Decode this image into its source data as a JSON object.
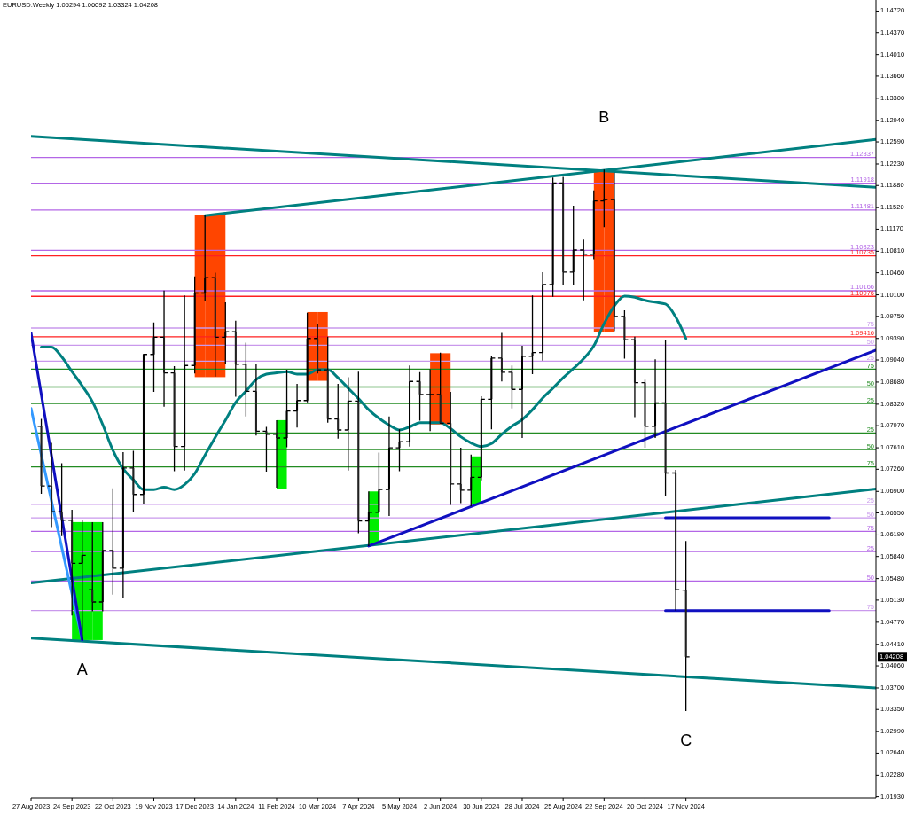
{
  "chart_data": {
    "type": "candlestick",
    "title": "EURUSD.Weekly 1.05294 1.06092 1.03324 1.04208",
    "x": [
      "2023-09-03",
      "2023-09-10",
      "2023-09-17",
      "2023-09-24",
      "2023-10-01",
      "2023-10-08",
      "2023-10-15",
      "2023-10-22",
      "2023-10-29",
      "2023-11-05",
      "2023-11-12",
      "2023-11-19",
      "2023-11-26",
      "2023-12-03",
      "2023-12-10",
      "2023-12-17",
      "2023-12-24",
      "2023-12-31",
      "2024-01-07",
      "2024-01-14",
      "2024-01-21",
      "2024-01-28",
      "2024-02-04",
      "2024-02-11",
      "2024-02-18",
      "2024-02-25",
      "2024-03-03",
      "2024-03-10",
      "2024-03-17",
      "2024-03-24",
      "2024-03-31",
      "2024-04-07",
      "2024-04-14",
      "2024-04-21",
      "2024-04-28",
      "2024-05-05",
      "2024-05-12",
      "2024-05-19",
      "2024-05-26",
      "2024-06-02",
      "2024-06-09",
      "2024-06-16",
      "2024-06-23",
      "2024-06-30",
      "2024-07-07",
      "2024-07-14",
      "2024-07-21",
      "2024-07-28",
      "2024-08-04",
      "2024-08-11",
      "2024-08-18",
      "2024-08-25",
      "2024-09-01",
      "2024-09-08",
      "2024-09-15",
      "2024-09-22",
      "2024-09-29",
      "2024-10-06",
      "2024-10-13",
      "2024-10-20",
      "2024-10-27",
      "2024-11-03",
      "2024-11-10",
      "2024-11-17"
    ],
    "ohlc": [
      [
        1.0796,
        1.0808,
        1.0686,
        1.0699
      ],
      [
        1.0699,
        1.0769,
        1.0632,
        1.0657
      ],
      [
        1.0657,
        1.0736,
        1.0617,
        1.0643
      ],
      [
        1.0643,
        1.066,
        1.0488,
        1.0573
      ],
      [
        1.0573,
        1.0643,
        1.0448,
        1.0586
      ],
      [
        1.053,
        1.064,
        1.0495,
        1.051
      ],
      [
        1.051,
        1.064,
        1.0495,
        1.0594
      ],
      [
        1.0594,
        1.0695,
        1.0522,
        1.0565
      ],
      [
        1.0565,
        1.0754,
        1.0516,
        1.0728
      ],
      [
        1.0728,
        1.0756,
        1.0657,
        1.0685
      ],
      [
        1.0685,
        1.0914,
        1.0669,
        1.0913
      ],
      [
        1.0913,
        1.0965,
        1.0852,
        1.0941
      ],
      [
        1.0941,
        1.1017,
        1.0828,
        1.0883
      ],
      [
        1.0883,
        1.0894,
        1.0723,
        1.0763
      ],
      [
        1.0763,
        1.1009,
        1.0724,
        1.0895
      ],
      [
        1.0895,
        1.104,
        1.0882,
        1.1013
      ],
      [
        1.1013,
        1.114,
        1.1,
        1.1038
      ],
      [
        1.1038,
        1.1046,
        1.0877,
        1.0941
      ],
      [
        1.0941,
        1.0998,
        1.0898,
        1.095
      ],
      [
        1.095,
        1.0968,
        1.0844,
        1.0897
      ],
      [
        1.0897,
        1.0932,
        1.0812,
        1.0853
      ],
      [
        1.0853,
        1.0898,
        1.0781,
        1.0788
      ],
      [
        1.0788,
        1.0795,
        1.0722,
        1.0783
      ],
      [
        1.0783,
        1.0806,
        1.0696,
        1.0777
      ],
      [
        1.0777,
        1.0888,
        1.0762,
        1.0821
      ],
      [
        1.0821,
        1.0865,
        1.0794,
        1.0838
      ],
      [
        1.0838,
        1.0981,
        1.0835,
        1.0939
      ],
      [
        1.0939,
        1.0962,
        1.0882,
        1.0888
      ],
      [
        1.0888,
        1.0942,
        1.0802,
        1.0808
      ],
      [
        1.0808,
        1.0865,
        1.0776,
        1.079
      ],
      [
        1.079,
        1.0876,
        1.0724,
        1.0837
      ],
      [
        1.0837,
        1.0885,
        1.0622,
        1.0642
      ],
      [
        1.0642,
        1.069,
        1.0601,
        1.0656
      ],
      [
        1.0656,
        1.0753,
        1.0656,
        1.0693
      ],
      [
        1.0693,
        1.0812,
        1.065,
        1.0761
      ],
      [
        1.0761,
        1.0791,
        1.0723,
        1.0771
      ],
      [
        1.0771,
        1.0895,
        1.0763,
        1.0869
      ],
      [
        1.0869,
        1.0884,
        1.0805,
        1.0848
      ],
      [
        1.0848,
        1.0889,
        1.0788,
        1.0848
      ],
      [
        1.0848,
        1.0916,
        1.08,
        1.0801
      ],
      [
        1.0801,
        1.0852,
        1.0668,
        1.0702
      ],
      [
        1.0702,
        1.0761,
        1.0671,
        1.0692
      ],
      [
        1.0692,
        1.075,
        1.0666,
        1.0713
      ],
      [
        1.0713,
        1.0845,
        1.0708,
        1.084
      ],
      [
        1.084,
        1.091,
        1.0791,
        1.0907
      ],
      [
        1.0907,
        1.0948,
        1.0869,
        1.0884
      ],
      [
        1.0884,
        1.0895,
        1.0825,
        1.0856
      ],
      [
        1.0856,
        1.0927,
        1.0777,
        1.091
      ],
      [
        1.091,
        1.1009,
        1.0881,
        1.0916
      ],
      [
        1.0916,
        1.1047,
        1.0903,
        1.1027
      ],
      [
        1.1027,
        1.1201,
        1.1007,
        1.1192
      ],
      [
        1.1192,
        1.1202,
        1.1026,
        1.1047
      ],
      [
        1.1047,
        1.1155,
        1.1026,
        1.1083
      ],
      [
        1.1083,
        1.11,
        1.1001,
        1.1076
      ],
      [
        1.1076,
        1.118,
        1.1068,
        1.1163
      ],
      [
        1.1163,
        1.1214,
        1.112,
        1.1165
      ],
      [
        1.1165,
        1.1209,
        1.0951,
        1.0975
      ],
      [
        1.0975,
        1.0985,
        1.0906,
        1.0937
      ],
      [
        1.0937,
        1.0942,
        1.0811,
        1.0867
      ],
      [
        1.0867,
        1.0872,
        1.0761,
        1.0796
      ],
      [
        1.0796,
        1.0905,
        1.0777,
        1.0834
      ],
      [
        1.0834,
        1.0937,
        1.0682,
        1.072
      ],
      [
        1.072,
        1.0725,
        1.0496,
        1.053
      ],
      [
        1.05294,
        1.06092,
        1.03324,
        1.04208
      ]
    ],
    "series": [
      {
        "type": "bar",
        "color": "#ff4500",
        "x": [
          "2023-12-17",
          "2023-12-24",
          "2023-12-31"
        ],
        "base": [
          1.0876,
          1.0876,
          1.0876
        ],
        "values": [
          0.0264,
          0.0264,
          0.0264
        ]
      },
      {
        "type": "bar",
        "color": "#ff4500",
        "x": [
          "2024-03-03",
          "2024-03-10"
        ],
        "base": [
          1.087,
          1.087
        ],
        "values": [
          0.0112,
          0.0112
        ]
      },
      {
        "type": "bar",
        "color": "#ff4500",
        "x": [
          "2024-05-26",
          "2024-06-02"
        ],
        "base": [
          1.0799,
          1.0799
        ],
        "values": [
          0.0116,
          0.0116
        ]
      },
      {
        "type": "bar",
        "color": "#ff4500",
        "x": [
          "2024-09-15",
          "2024-09-22"
        ],
        "base": [
          1.095,
          1.095
        ],
        "values": [
          0.0263,
          0.0263
        ]
      },
      {
        "type": "bar",
        "color": "#00ee00",
        "x": [
          "2023-09-24",
          "2023-10-01",
          "2023-10-08"
        ],
        "base": [
          1.0448,
          1.0448,
          1.0448
        ],
        "values": [
          0.0192,
          0.0192,
          0.0192
        ]
      },
      {
        "type": "bar",
        "color": "#00ee00",
        "x": [
          "2024-02-11"
        ],
        "base": [
          1.0694
        ],
        "values": [
          0.0112
        ]
      },
      {
        "type": "bar",
        "color": "#00ee00",
        "x": [
          "2024-04-14"
        ],
        "base": [
          1.0604
        ],
        "values": [
          0.0086
        ]
      },
      {
        "type": "bar",
        "color": "#00ee00",
        "x": [
          "2024-06-23"
        ],
        "base": [
          1.0669
        ],
        "values": [
          0.0078
        ]
      },
      {
        "type": "line",
        "color": "#008080",
        "values": [
          1.0925,
          1.0925,
          1.0909,
          1.0885,
          1.0862,
          1.0836,
          1.0799,
          1.0757,
          1.0727,
          1.0709,
          1.0693,
          1.0693,
          1.0697,
          1.0693,
          1.0701,
          1.0719,
          1.0749,
          1.0778,
          1.0806,
          1.0835,
          1.0853,
          1.0872,
          1.0881,
          1.0883,
          1.0885,
          1.0881,
          1.0881,
          1.0888,
          1.0888,
          1.0875,
          1.0858,
          1.0841,
          1.0823,
          1.0809,
          1.0798,
          1.079,
          1.0795,
          1.0802,
          1.0802,
          1.0802,
          1.0792,
          1.0779,
          1.0769,
          1.0763,
          1.0768,
          1.0783,
          1.0796,
          1.0807,
          1.0823,
          1.0842,
          1.0858,
          1.0875,
          1.089,
          1.0906,
          1.0927,
          1.0963,
          1.0992,
          1.1008,
          1.1006,
          1.1001,
          1.0998,
          1.0995,
          1.0974,
          1.0939
        ]
      },
      {
        "type": "line",
        "color": "#008080",
        "x": [
          "2023-08-27",
          "2025-03-27"
        ],
        "values": [
          1.1268,
          1.1185
        ]
      },
      {
        "type": "line",
        "color": "#008080",
        "x": [
          "2023-12-24",
          "2025-03-27"
        ],
        "values": [
          1.1139,
          1.1263
        ]
      },
      {
        "type": "line",
        "color": "#008080",
        "x": [
          "2023-08-27",
          "2025-03-27"
        ],
        "values": [
          1.0541,
          1.0694
        ]
      },
      {
        "type": "line",
        "color": "#008080",
        "x": [
          "2023-08-27",
          "2025-03-27"
        ],
        "values": [
          1.0451,
          1.037
        ]
      },
      {
        "type": "line",
        "color": "#3399ff",
        "x": [
          "2023-08-27",
          "2023-10-01"
        ],
        "values": [
          1.0825,
          1.0448
        ]
      },
      {
        "type": "line",
        "color": "#1010c0",
        "x": [
          "2023-08-27",
          "2023-10-01"
        ],
        "values": [
          1.0948,
          1.0448
        ]
      },
      {
        "type": "line",
        "color": "#1010c0",
        "x": [
          "2024-04-14",
          "2025-03-27"
        ],
        "values": [
          1.0601,
          1.092
        ]
      },
      {
        "type": "line",
        "color": "#1010c0",
        "x": [
          "2024-11-03",
          "2025-02-23"
        ],
        "values": [
          1.0647,
          1.0647
        ]
      },
      {
        "type": "line",
        "color": "#1010c0",
        "x": [
          "2024-11-03",
          "2025-02-23"
        ],
        "values": [
          1.0496,
          1.0496
        ]
      }
    ],
    "ref_lines": [
      {
        "axis": "y",
        "value": 1.12337,
        "label": "1.12337",
        "color": "#b366e6"
      },
      {
        "axis": "y",
        "value": 1.11918,
        "label": "1.11918",
        "color": "#b366e6"
      },
      {
        "axis": "y",
        "value": 1.11481,
        "label": "1.11481",
        "color": "#b366e6"
      },
      {
        "axis": "y",
        "value": 1.10823,
        "label": "1.10823",
        "color": "#b366e6"
      },
      {
        "axis": "y",
        "value": 1.10735,
        "label": "1.10735",
        "color": "#ff2020"
      },
      {
        "axis": "y",
        "value": 1.10166,
        "label": "1.10166",
        "color": "#b366e6"
      },
      {
        "axis": "y",
        "value": 1.10076,
        "label": "1.10076",
        "color": "#ff2020"
      },
      {
        "axis": "y",
        "value": 1.0956,
        "color": "#c999ec"
      },
      {
        "axis": "y",
        "value": 1.09416,
        "label": "1.09416",
        "color": "#ff2020"
      },
      {
        "axis": "y",
        "value": 1.0928,
        "color": "#c999ec"
      },
      {
        "axis": "y",
        "value": 1.0902,
        "color": "#c999ec"
      },
      {
        "axis": "y",
        "value": 1.0889,
        "color": "#228b22"
      },
      {
        "axis": "y",
        "value": 1.086,
        "color": "#228b22"
      },
      {
        "axis": "y",
        "value": 1.0833,
        "color": "#228b22"
      },
      {
        "axis": "y",
        "value": 1.0785,
        "color": "#228b22"
      },
      {
        "axis": "y",
        "value": 1.0758,
        "color": "#228b22"
      },
      {
        "axis": "y",
        "value": 1.073,
        "color": "#228b22"
      },
      {
        "axis": "y",
        "value": 1.0669,
        "color": "#c999ec"
      },
      {
        "axis": "y",
        "value": 1.0647,
        "color": "#c999ec"
      },
      {
        "axis": "y",
        "value": 1.0625,
        "color": "#b366e6"
      },
      {
        "axis": "y",
        "value": 1.0592,
        "color": "#b366e6"
      },
      {
        "axis": "y",
        "value": 1.0544,
        "color": "#b366e6"
      },
      {
        "axis": "y",
        "value": 1.0496,
        "color": "#c999ec"
      }
    ],
    "annotations": [
      {
        "text": "A",
        "x": "2023-10-01",
        "y": 1.0448
      },
      {
        "text": "B",
        "x": "2024-09-22",
        "y": 1.1214
      },
      {
        "text": "C",
        "x": "2024-11-17",
        "y": 1.03324
      },
      {
        "text": "1.04208",
        "y": 1.04208
      },
      {
        "text": "75",
        "y": 1.0956
      },
      {
        "text": "50",
        "y": 1.0928
      },
      {
        "text": "25",
        "y": 1.0902
      },
      {
        "text": "75",
        "y": 1.0889
      },
      {
        "text": "50",
        "y": 1.086
      },
      {
        "text": "25",
        "y": 1.0833
      },
      {
        "text": "25",
        "y": 1.0785
      },
      {
        "text": "50",
        "y": 1.0758
      },
      {
        "text": "75",
        "y": 1.073
      },
      {
        "text": "25",
        "y": 1.0669
      },
      {
        "text": "50",
        "y": 1.0647
      },
      {
        "text": "75",
        "y": 1.0625
      },
      {
        "text": "25",
        "y": 1.0592
      },
      {
        "text": "50",
        "y": 1.0544
      },
      {
        "text": "75",
        "y": 1.0496
      }
    ],
    "xlim": [
      "2023-08-27",
      "2025-03-27"
    ],
    "xticks": [
      {
        "value": "2023-08-27",
        "label": "27 Aug 2023"
      },
      {
        "value": "2023-09-24",
        "label": "24 Sep 2023"
      },
      {
        "value": "2023-10-22",
        "label": "22 Oct 2023"
      },
      {
        "value": "2023-11-19",
        "label": "19 Nov 2023"
      },
      {
        "value": "2023-12-17",
        "label": "17 Dec 2023"
      },
      {
        "value": "2024-01-14",
        "label": "14 Jan 2024"
      },
      {
        "value": "2024-02-11",
        "label": "11 Feb 2024"
      },
      {
        "value": "2024-03-10",
        "label": "10 Mar 2024"
      },
      {
        "value": "2024-04-07",
        "label": "7 Apr 2024"
      },
      {
        "value": "2024-05-05",
        "label": "5 May 2024"
      },
      {
        "value": "2024-06-02",
        "label": "2 Jun 2024"
      },
      {
        "value": "2024-06-30",
        "label": "30 Jun 2024"
      },
      {
        "value": "2024-07-28",
        "label": "28 Jul 2024"
      },
      {
        "value": "2024-08-25",
        "label": "25 Aug 2024"
      },
      {
        "value": "2024-09-22",
        "label": "22 Sep 2024"
      },
      {
        "value": "2024-10-20",
        "label": "20 Oct 2024"
      },
      {
        "value": "2024-11-17",
        "label": "17 Nov 2024"
      }
    ],
    "ylim": [
      1.0191,
      1.149
    ],
    "yticks": [
      {
        "value": 1.1472,
        "label": "1.14720"
      },
      {
        "value": 1.1437,
        "label": "1.14370"
      },
      {
        "value": 1.1401,
        "label": "1.14010"
      },
      {
        "value": 1.1366,
        "label": "1.13660"
      },
      {
        "value": 1.133,
        "label": "1.13300"
      },
      {
        "value": 1.1294,
        "label": "1.12940"
      },
      {
        "value": 1.1259,
        "label": "1.12590"
      },
      {
        "value": 1.1223,
        "label": "1.12230"
      },
      {
        "value": 1.1188,
        "label": "1.11880"
      },
      {
        "value": 1.1152,
        "label": "1.11520"
      },
      {
        "value": 1.1117,
        "label": "1.11170"
      },
      {
        "value": 1.1081,
        "label": "1.10810"
      },
      {
        "value": 1.1046,
        "label": "1.10460"
      },
      {
        "value": 1.101,
        "label": "1.10100"
      },
      {
        "value": 1.0975,
        "label": "1.09750"
      },
      {
        "value": 1.0939,
        "label": "1.09390"
      },
      {
        "value": 1.0904,
        "label": "1.09040"
      },
      {
        "value": 1.0868,
        "label": "1.08680"
      },
      {
        "value": 1.0832,
        "label": "1.08320"
      },
      {
        "value": 1.0797,
        "label": "1.07970"
      },
      {
        "value": 1.0761,
        "label": "1.07610"
      },
      {
        "value": 1.0726,
        "label": "1.07260"
      },
      {
        "value": 1.069,
        "label": "1.06900"
      },
      {
        "value": 1.0655,
        "label": "1.06550"
      },
      {
        "value": 1.0619,
        "label": "1.06190"
      },
      {
        "value": 1.0584,
        "label": "1.05840"
      },
      {
        "value": 1.0548,
        "label": "1.05480"
      },
      {
        "value": 1.0513,
        "label": "1.05130"
      },
      {
        "value": 1.0477,
        "label": "1.04770"
      },
      {
        "value": 1.0441,
        "label": "1.04410"
      },
      {
        "value": 1.0406,
        "label": "1.04060"
      },
      {
        "value": 1.037,
        "label": "1.03700"
      },
      {
        "value": 1.0335,
        "label": "1.03350"
      },
      {
        "value": 1.0299,
        "label": "1.02990"
      },
      {
        "value": 1.0264,
        "label": "1.02640"
      },
      {
        "value": 1.0228,
        "label": "1.02280"
      },
      {
        "value": 1.0193,
        "label": "1.01930"
      }
    ]
  }
}
